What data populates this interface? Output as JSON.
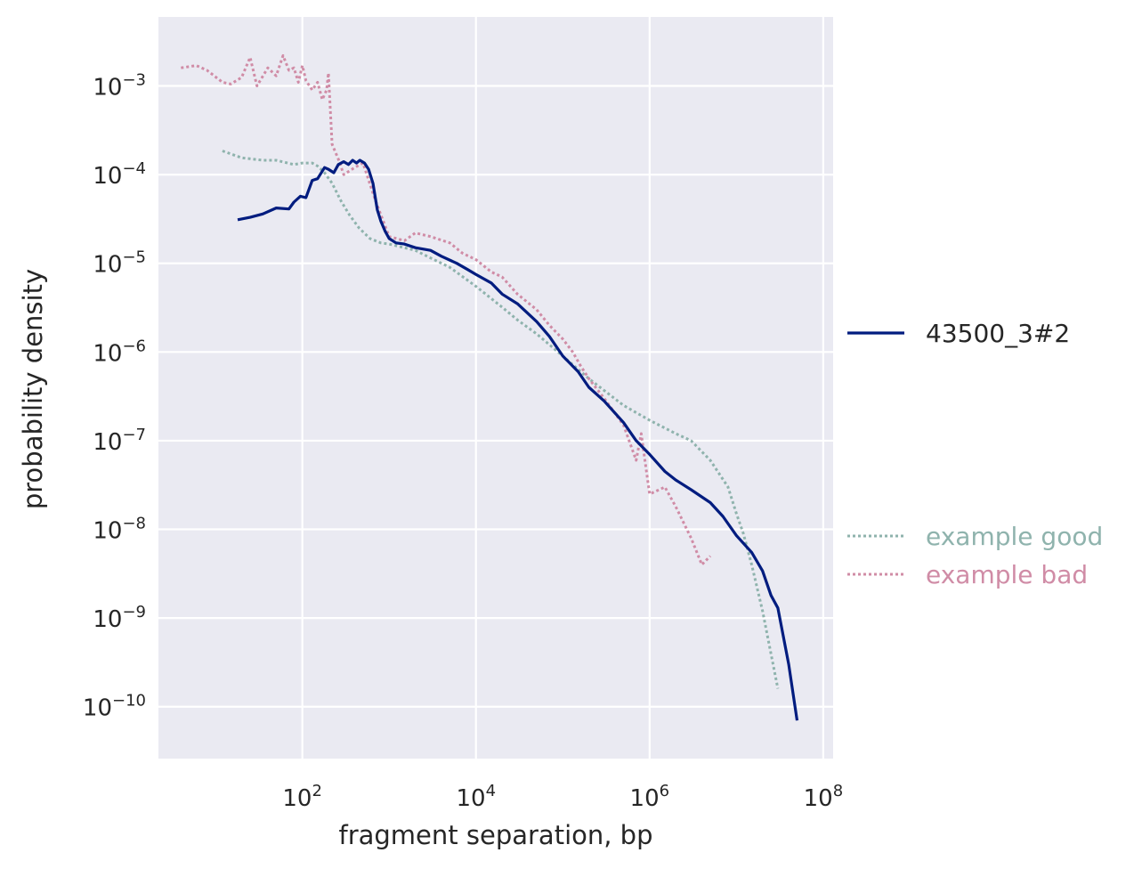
{
  "chart_data": {
    "type": "line",
    "xlabel": "fragment separation, bp",
    "ylabel": "probability density",
    "xscale": "log",
    "yscale": "log",
    "xlim": [
      2.2,
      130000000
    ],
    "ylim": [
      2.6e-11,
      0.006
    ],
    "x_ticks": [
      {
        "base": "10",
        "exp": "2",
        "value": 100
      },
      {
        "base": "10",
        "exp": "4",
        "value": 10000
      },
      {
        "base": "10",
        "exp": "6",
        "value": 1000000
      },
      {
        "base": "10",
        "exp": "8",
        "value": 100000000
      }
    ],
    "y_ticks": [
      {
        "base": "10",
        "exp": "−3",
        "value": 0.001
      },
      {
        "base": "10",
        "exp": "−4",
        "value": 0.0001
      },
      {
        "base": "10",
        "exp": "−5",
        "value": 1e-05
      },
      {
        "base": "10",
        "exp": "−6",
        "value": 1e-06
      },
      {
        "base": "10",
        "exp": "−7",
        "value": 1e-07
      },
      {
        "base": "10",
        "exp": "−8",
        "value": 1e-08
      },
      {
        "base": "10",
        "exp": "−9",
        "value": 1e-09
      },
      {
        "base": "10",
        "exp": "−10",
        "value": 1e-10
      }
    ],
    "grid": true,
    "background": "#eaeaf2",
    "legend_placement": "right",
    "series": [
      {
        "name": "43500_3#2",
        "style": "solid",
        "color": "#001c7f",
        "x": [
          18,
          25,
          35,
          50,
          70,
          80,
          95,
          110,
          130,
          150,
          180,
          200,
          230,
          260,
          300,
          340,
          380,
          420,
          460,
          520,
          580,
          650,
          730,
          800,
          900,
          1000,
          1200,
          1500,
          2000,
          3000,
          4000,
          6000,
          8000,
          10000,
          15000,
          20000,
          30000,
          50000,
          70000,
          100000,
          150000,
          200000,
          300000,
          500000,
          700000,
          1000000,
          1500000,
          2000000,
          3000000,
          5000000,
          7000000,
          10000000,
          15000000,
          20000000,
          25000000,
          30000000,
          40000000,
          50000000
        ],
        "y": [
          3.1e-05,
          3.3e-05,
          3.6e-05,
          4.2e-05,
          4.1e-05,
          4.9e-05,
          5.7e-05,
          5.5e-05,
          8.6e-05,
          9e-05,
          0.00012,
          0.000115,
          0.000105,
          0.00013,
          0.00014,
          0.00013,
          0.000145,
          0.000135,
          0.000145,
          0.000135,
          0.000115,
          8e-05,
          4e-05,
          3e-05,
          2.3e-05,
          1.9e-05,
          1.7e-05,
          1.65e-05,
          1.5e-05,
          1.4e-05,
          1.2e-05,
          1e-05,
          8.5e-06,
          7.5e-06,
          6e-06,
          4.5e-06,
          3.5e-06,
          2.2e-06,
          1.5e-06,
          9e-07,
          6e-07,
          4e-07,
          2.8e-07,
          1.6e-07,
          1e-07,
          7e-08,
          4.5e-08,
          3.6e-08,
          2.8e-08,
          2e-08,
          1.4e-08,
          8.5e-09,
          5.5e-09,
          3.4e-09,
          1.8e-09,
          1.3e-09,
          3e-10,
          7e-11
        ]
      },
      {
        "name": "example good",
        "style": "dotted",
        "color": "#8fb3ad",
        "x": [
          12,
          20,
          35,
          50,
          80,
          100,
          130,
          150,
          180,
          220,
          280,
          350,
          450,
          600,
          800,
          1000,
          2000,
          3000,
          5000,
          10000,
          20000,
          30000,
          50000,
          100000,
          200000,
          500000,
          1000000,
          2000000,
          3000000,
          5000000,
          8000000,
          10000000,
          12000000,
          15000000,
          20000000,
          30000000
        ],
        "y": [
          0.000185,
          0.000155,
          0.000145,
          0.000145,
          0.00013,
          0.000135,
          0.000135,
          0.000125,
          0.000105,
          8e-05,
          5e-05,
          3.5e-05,
          2.5e-05,
          1.9e-05,
          1.7e-05,
          1.65e-05,
          1.4e-05,
          1.15e-05,
          9e-06,
          5.5e-06,
          3.2e-06,
          2.3e-06,
          1.6e-06,
          9e-07,
          5e-07,
          2.5e-07,
          1.7e-07,
          1.2e-07,
          1e-07,
          6e-08,
          3e-08,
          1.5e-08,
          9e-09,
          4e-09,
          1.2e-09,
          1.6e-10
        ]
      },
      {
        "name": "example bad",
        "style": "dotted",
        "color": "#d08ca6",
        "x": [
          4,
          6,
          8,
          12,
          15,
          20,
          25,
          30,
          40,
          50,
          60,
          70,
          80,
          90,
          100,
          110,
          130,
          150,
          170,
          190,
          200,
          220,
          260,
          300,
          400,
          500,
          700,
          1000,
          1500,
          2000,
          3000,
          5000,
          7000,
          10000,
          15000,
          20000,
          30000,
          50000,
          70000,
          100000,
          130000,
          160000,
          200000,
          300000,
          500000,
          700000,
          800000,
          1000000,
          1500000,
          2000000,
          3000000,
          4000000,
          5000000
        ],
        "y": [
          0.0016,
          0.0017,
          0.0015,
          0.0011,
          0.00105,
          0.00125,
          0.0021,
          0.001,
          0.0016,
          0.0013,
          0.0022,
          0.0015,
          0.0016,
          0.0011,
          0.0017,
          0.00115,
          0.0009,
          0.0011,
          0.0007,
          0.0009,
          0.0014,
          0.00022,
          0.00015,
          0.0001,
          0.00012,
          0.000135,
          5e-05,
          2e-05,
          1.8e-05,
          2.2e-05,
          2e-05,
          1.7e-05,
          1.3e-05,
          1.1e-05,
          8e-06,
          7e-06,
          4.5e-06,
          3e-06,
          2e-06,
          1.4e-06,
          1e-06,
          7e-07,
          5e-07,
          3e-07,
          1.5e-07,
          6e-08,
          1.2e-07,
          2.5e-08,
          3e-08,
          1.8e-08,
          8e-09,
          4e-09,
          5e-09
        ]
      }
    ]
  }
}
